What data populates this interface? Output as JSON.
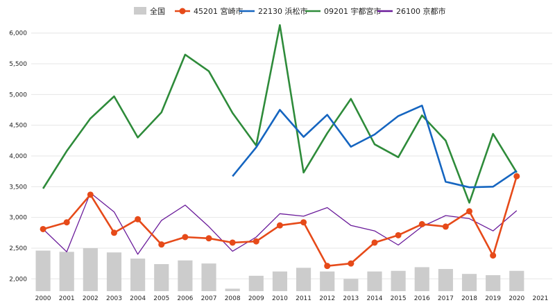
{
  "chart_data": {
    "type": "bar+line",
    "categories": [
      "2000",
      "2001",
      "2002",
      "2003",
      "2004",
      "2005",
      "2006",
      "2007",
      "2008",
      "2009",
      "2010",
      "2011",
      "2012",
      "2013",
      "2014",
      "2015",
      "2016",
      "2017",
      "2018",
      "2019",
      "2020",
      "2021"
    ],
    "ylim": [
      1800,
      6200
    ],
    "yticks": [
      2000,
      2500,
      3000,
      3500,
      4000,
      4500,
      5000,
      5500,
      6000
    ],
    "ytick_labels": [
      "2,000",
      "2,500",
      "3,000",
      "3,500",
      "4,000",
      "4,500",
      "5,000",
      "5,500",
      "6,000"
    ],
    "grid": true,
    "legend_position": "top",
    "bars": {
      "name": "全国",
      "color": "#cccccc",
      "values": [
        2460,
        2440,
        2500,
        2430,
        2330,
        2240,
        2300,
        2250,
        1840,
        2050,
        2120,
        2180,
        2120,
        2000,
        2120,
        2130,
        2190,
        2160,
        2080,
        2060,
        2130,
        null
      ]
    },
    "series": [
      {
        "name": "45201 宮崎市",
        "color": "#e64a19",
        "markers": true,
        "values": [
          2810,
          2920,
          3370,
          2750,
          2970,
          2560,
          2680,
          2660,
          2590,
          2610,
          2870,
          2920,
          2210,
          2250,
          2590,
          2710,
          2890,
          2850,
          3100,
          2380,
          3670,
          null
        ]
      },
      {
        "name": "22130 浜松市",
        "color": "#1565c0",
        "markers": false,
        "values": [
          null,
          null,
          null,
          null,
          null,
          null,
          null,
          null,
          3670,
          4140,
          4750,
          4310,
          4670,
          4150,
          4350,
          4650,
          4820,
          3580,
          3490,
          3500,
          3760,
          null
        ]
      },
      {
        "name": "09201 宇都宮市",
        "color": "#2e8b3a",
        "markers": false,
        "values": [
          3470,
          4080,
          4610,
          4970,
          4300,
          4710,
          5650,
          5380,
          4700,
          4170,
          6130,
          3730,
          4370,
          4930,
          4190,
          3980,
          4660,
          4250,
          3240,
          4360,
          3730,
          null
        ]
      },
      {
        "name": "26100 京都市",
        "color": "#6a1b9a",
        "markers": false,
        "values": [
          2810,
          2440,
          3400,
          3090,
          2400,
          2950,
          3200,
          2850,
          2450,
          2680,
          3060,
          3020,
          3160,
          2870,
          2780,
          2550,
          2850,
          3030,
          2980,
          2780,
          3110,
          null
        ]
      }
    ]
  }
}
